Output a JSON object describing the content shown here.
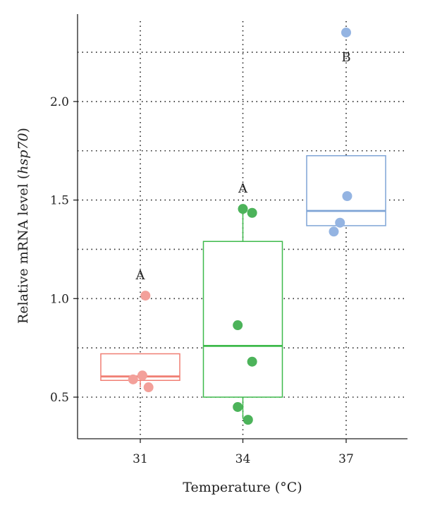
{
  "chart_data": {
    "type": "box",
    "xlabel": "Temperature (°C)",
    "ylabel": {
      "prefix": "Relative mRNA level (",
      "italic": "hsp70",
      "suffix": ")"
    },
    "categories": [
      "31",
      "34",
      "37"
    ],
    "ylim": [
      0.3,
      2.6
    ],
    "yticks": [
      "0.5",
      "1.0",
      "1.5",
      "2.0"
    ],
    "grid": true,
    "groups": [
      {
        "category": "31",
        "color": "#f07f74",
        "point_color": "#f3a09a",
        "box": {
          "q1": 0.585,
          "median": 0.605,
          "q3": 0.72,
          "whisker_low": 0.55,
          "whisker_high": 0.72
        },
        "points": [
          {
            "offset": 0.05,
            "y": 1.015
          },
          {
            "offset": -0.07,
            "y": 0.59
          },
          {
            "offset": 0.02,
            "y": 0.61
          },
          {
            "offset": 0.08,
            "y": 0.55
          }
        ],
        "significance": "A",
        "significance_y": 1.12
      },
      {
        "category": "34",
        "color": "#3db94a",
        "point_color": "#4cb35a",
        "box": {
          "q1": 0.5,
          "median": 0.76,
          "q3": 1.29,
          "whisker_low": 0.39,
          "whisker_high": 1.455
        },
        "points": [
          {
            "offset": 0.0,
            "y": 1.455
          },
          {
            "offset": 0.09,
            "y": 1.435
          },
          {
            "offset": -0.05,
            "y": 0.865
          },
          {
            "offset": 0.09,
            "y": 0.68
          },
          {
            "offset": -0.05,
            "y": 0.45
          },
          {
            "offset": 0.05,
            "y": 0.385
          }
        ],
        "significance": "A",
        "significance_y": 1.56
      },
      {
        "category": "37",
        "color": "#7ea4d6",
        "point_color": "#94b4e2",
        "box": {
          "q1": 1.37,
          "median": 1.445,
          "q3": 1.725,
          "whisker_low": 1.37,
          "whisker_high": 1.725
        },
        "points": [
          {
            "offset": 0.0,
            "y": 2.35
          },
          {
            "offset": 0.01,
            "y": 1.52
          },
          {
            "offset": -0.06,
            "y": 1.385
          },
          {
            "offset": -0.12,
            "y": 1.34
          }
        ],
        "significance": "B",
        "significance_y": 2.225
      }
    ]
  }
}
